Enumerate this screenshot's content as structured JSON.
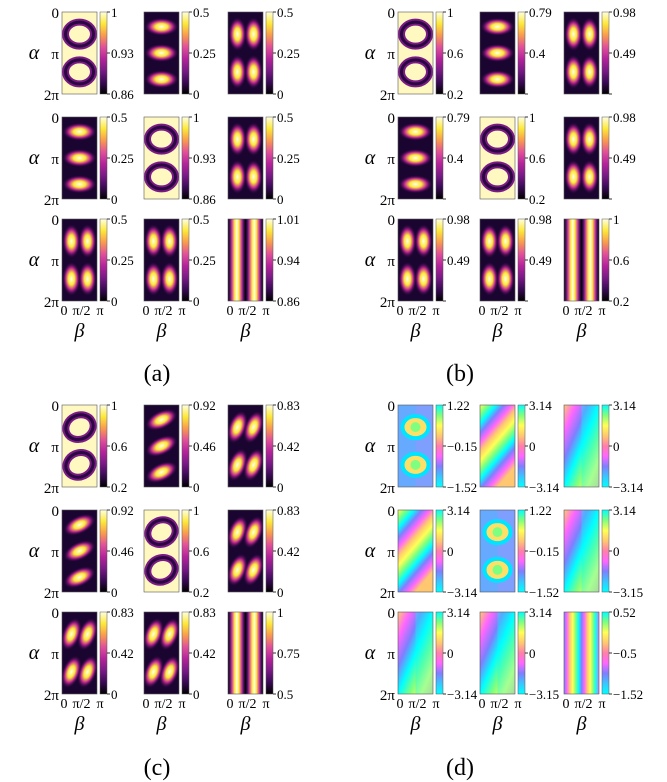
{
  "figure": {
    "axis_y_label": "α",
    "axis_x_label": "β",
    "y_ticks": [
      "0",
      "π",
      "2π"
    ],
    "x_ticks": [
      "0",
      "π/2",
      "π"
    ],
    "colormaps": {
      "magnitude": [
        "#000000",
        "#3a0a55",
        "#7a1a86",
        "#b4239a",
        "#e0509a",
        "#f99a4f",
        "#fde83a",
        "#ffffe0"
      ],
      "phase": [
        "#00ffff",
        "#39c7ff",
        "#7f7fff",
        "#ff66ff",
        "#ff7faa",
        "#ffc870",
        "#ffff55",
        "#7fff7f",
        "#00ffff"
      ]
    },
    "panels": [
      {
        "label": "(a)",
        "colormap": "magnitude",
        "cells": [
          {
            "pattern": "ring",
            "ticks": [
              "1",
              "0.93",
              "0.86"
            ]
          },
          {
            "pattern": "lobes-h",
            "ticks": [
              "0.5",
              "0.25",
              "0"
            ]
          },
          {
            "pattern": "lobes-v",
            "ticks": [
              "0.5",
              "0.25",
              "0"
            ]
          },
          {
            "pattern": "lobes-h",
            "ticks": [
              "0.5",
              "0.25",
              "0"
            ]
          },
          {
            "pattern": "ring",
            "ticks": [
              "1",
              "0.93",
              "0.86"
            ]
          },
          {
            "pattern": "lobes-v",
            "ticks": [
              "0.5",
              "0.25",
              "0"
            ]
          },
          {
            "pattern": "lobes-v",
            "ticks": [
              "0.5",
              "0.25",
              "0"
            ]
          },
          {
            "pattern": "lobes-v",
            "ticks": [
              "0.5",
              "0.25",
              "0"
            ]
          },
          {
            "pattern": "stripes",
            "ticks": [
              "1.01",
              "0.94",
              "0.86"
            ]
          }
        ]
      },
      {
        "label": "(b)",
        "colormap": "magnitude",
        "cells": [
          {
            "pattern": "ring",
            "ticks": [
              "1",
              "0.6",
              "0.2"
            ]
          },
          {
            "pattern": "lobes-h",
            "ticks": [
              "0.79",
              "0.4",
              ""
            ]
          },
          {
            "pattern": "lobes-v",
            "ticks": [
              "0.98",
              "0.49",
              ""
            ]
          },
          {
            "pattern": "lobes-h",
            "ticks": [
              "0.79",
              "0.4",
              ""
            ]
          },
          {
            "pattern": "ring",
            "ticks": [
              "1",
              "0.6",
              "0.2"
            ]
          },
          {
            "pattern": "lobes-v",
            "ticks": [
              "0.98",
              "0.49",
              ""
            ]
          },
          {
            "pattern": "lobes-v",
            "ticks": [
              "0.98",
              "0.49",
              ""
            ]
          },
          {
            "pattern": "lobes-v",
            "ticks": [
              "0.98",
              "0.49",
              ""
            ]
          },
          {
            "pattern": "stripes",
            "ticks": [
              "1",
              "0.6",
              "0.2"
            ]
          }
        ]
      },
      {
        "label": "(c)",
        "colormap": "magnitude",
        "cells": [
          {
            "pattern": "ring-tilt",
            "ticks": [
              "1",
              "0.6",
              "0.2"
            ]
          },
          {
            "pattern": "diag",
            "ticks": [
              "0.92",
              "0.46",
              "0"
            ]
          },
          {
            "pattern": "lobes-tilt",
            "ticks": [
              "0.83",
              "0.42",
              "0"
            ]
          },
          {
            "pattern": "diag",
            "ticks": [
              "0.92",
              "0.46",
              "0"
            ]
          },
          {
            "pattern": "ring-tilt",
            "ticks": [
              "1",
              "0.6",
              "0.2"
            ]
          },
          {
            "pattern": "lobes-tilt",
            "ticks": [
              "0.83",
              "0.42",
              "0"
            ]
          },
          {
            "pattern": "lobes-tilt",
            "ticks": [
              "0.83",
              "0.42",
              "0"
            ]
          },
          {
            "pattern": "lobes-tilt",
            "ticks": [
              "0.83",
              "0.42",
              "0"
            ]
          },
          {
            "pattern": "stripes",
            "ticks": [
              "1",
              "0.75",
              "0.5"
            ]
          }
        ]
      },
      {
        "label": "(d)",
        "colormap": "phase",
        "cells": [
          {
            "pattern": "phase-ring",
            "ticks": [
              "1.22",
              "−0.15",
              "−1.52"
            ]
          },
          {
            "pattern": "phase-diag",
            "ticks": [
              "3.14",
              "0",
              "−3.14"
            ]
          },
          {
            "pattern": "phase-vortex",
            "ticks": [
              "3.14",
              "0",
              "−3.14"
            ]
          },
          {
            "pattern": "phase-diag",
            "ticks": [
              "3.14",
              "0",
              "−3.14"
            ]
          },
          {
            "pattern": "phase-ring",
            "ticks": [
              "1.22",
              "−0.15",
              "−1.52"
            ]
          },
          {
            "pattern": "phase-vortex",
            "ticks": [
              "3.14",
              "0",
              "−3.15"
            ]
          },
          {
            "pattern": "phase-vortex",
            "ticks": [
              "3.14",
              "0",
              "−3.14"
            ]
          },
          {
            "pattern": "phase-vortex",
            "ticks": [
              "3.14",
              "0",
              "−3.15"
            ]
          },
          {
            "pattern": "phase-stripes",
            "ticks": [
              "0.52",
              "−0.5",
              "−1.52"
            ]
          }
        ]
      }
    ]
  }
}
